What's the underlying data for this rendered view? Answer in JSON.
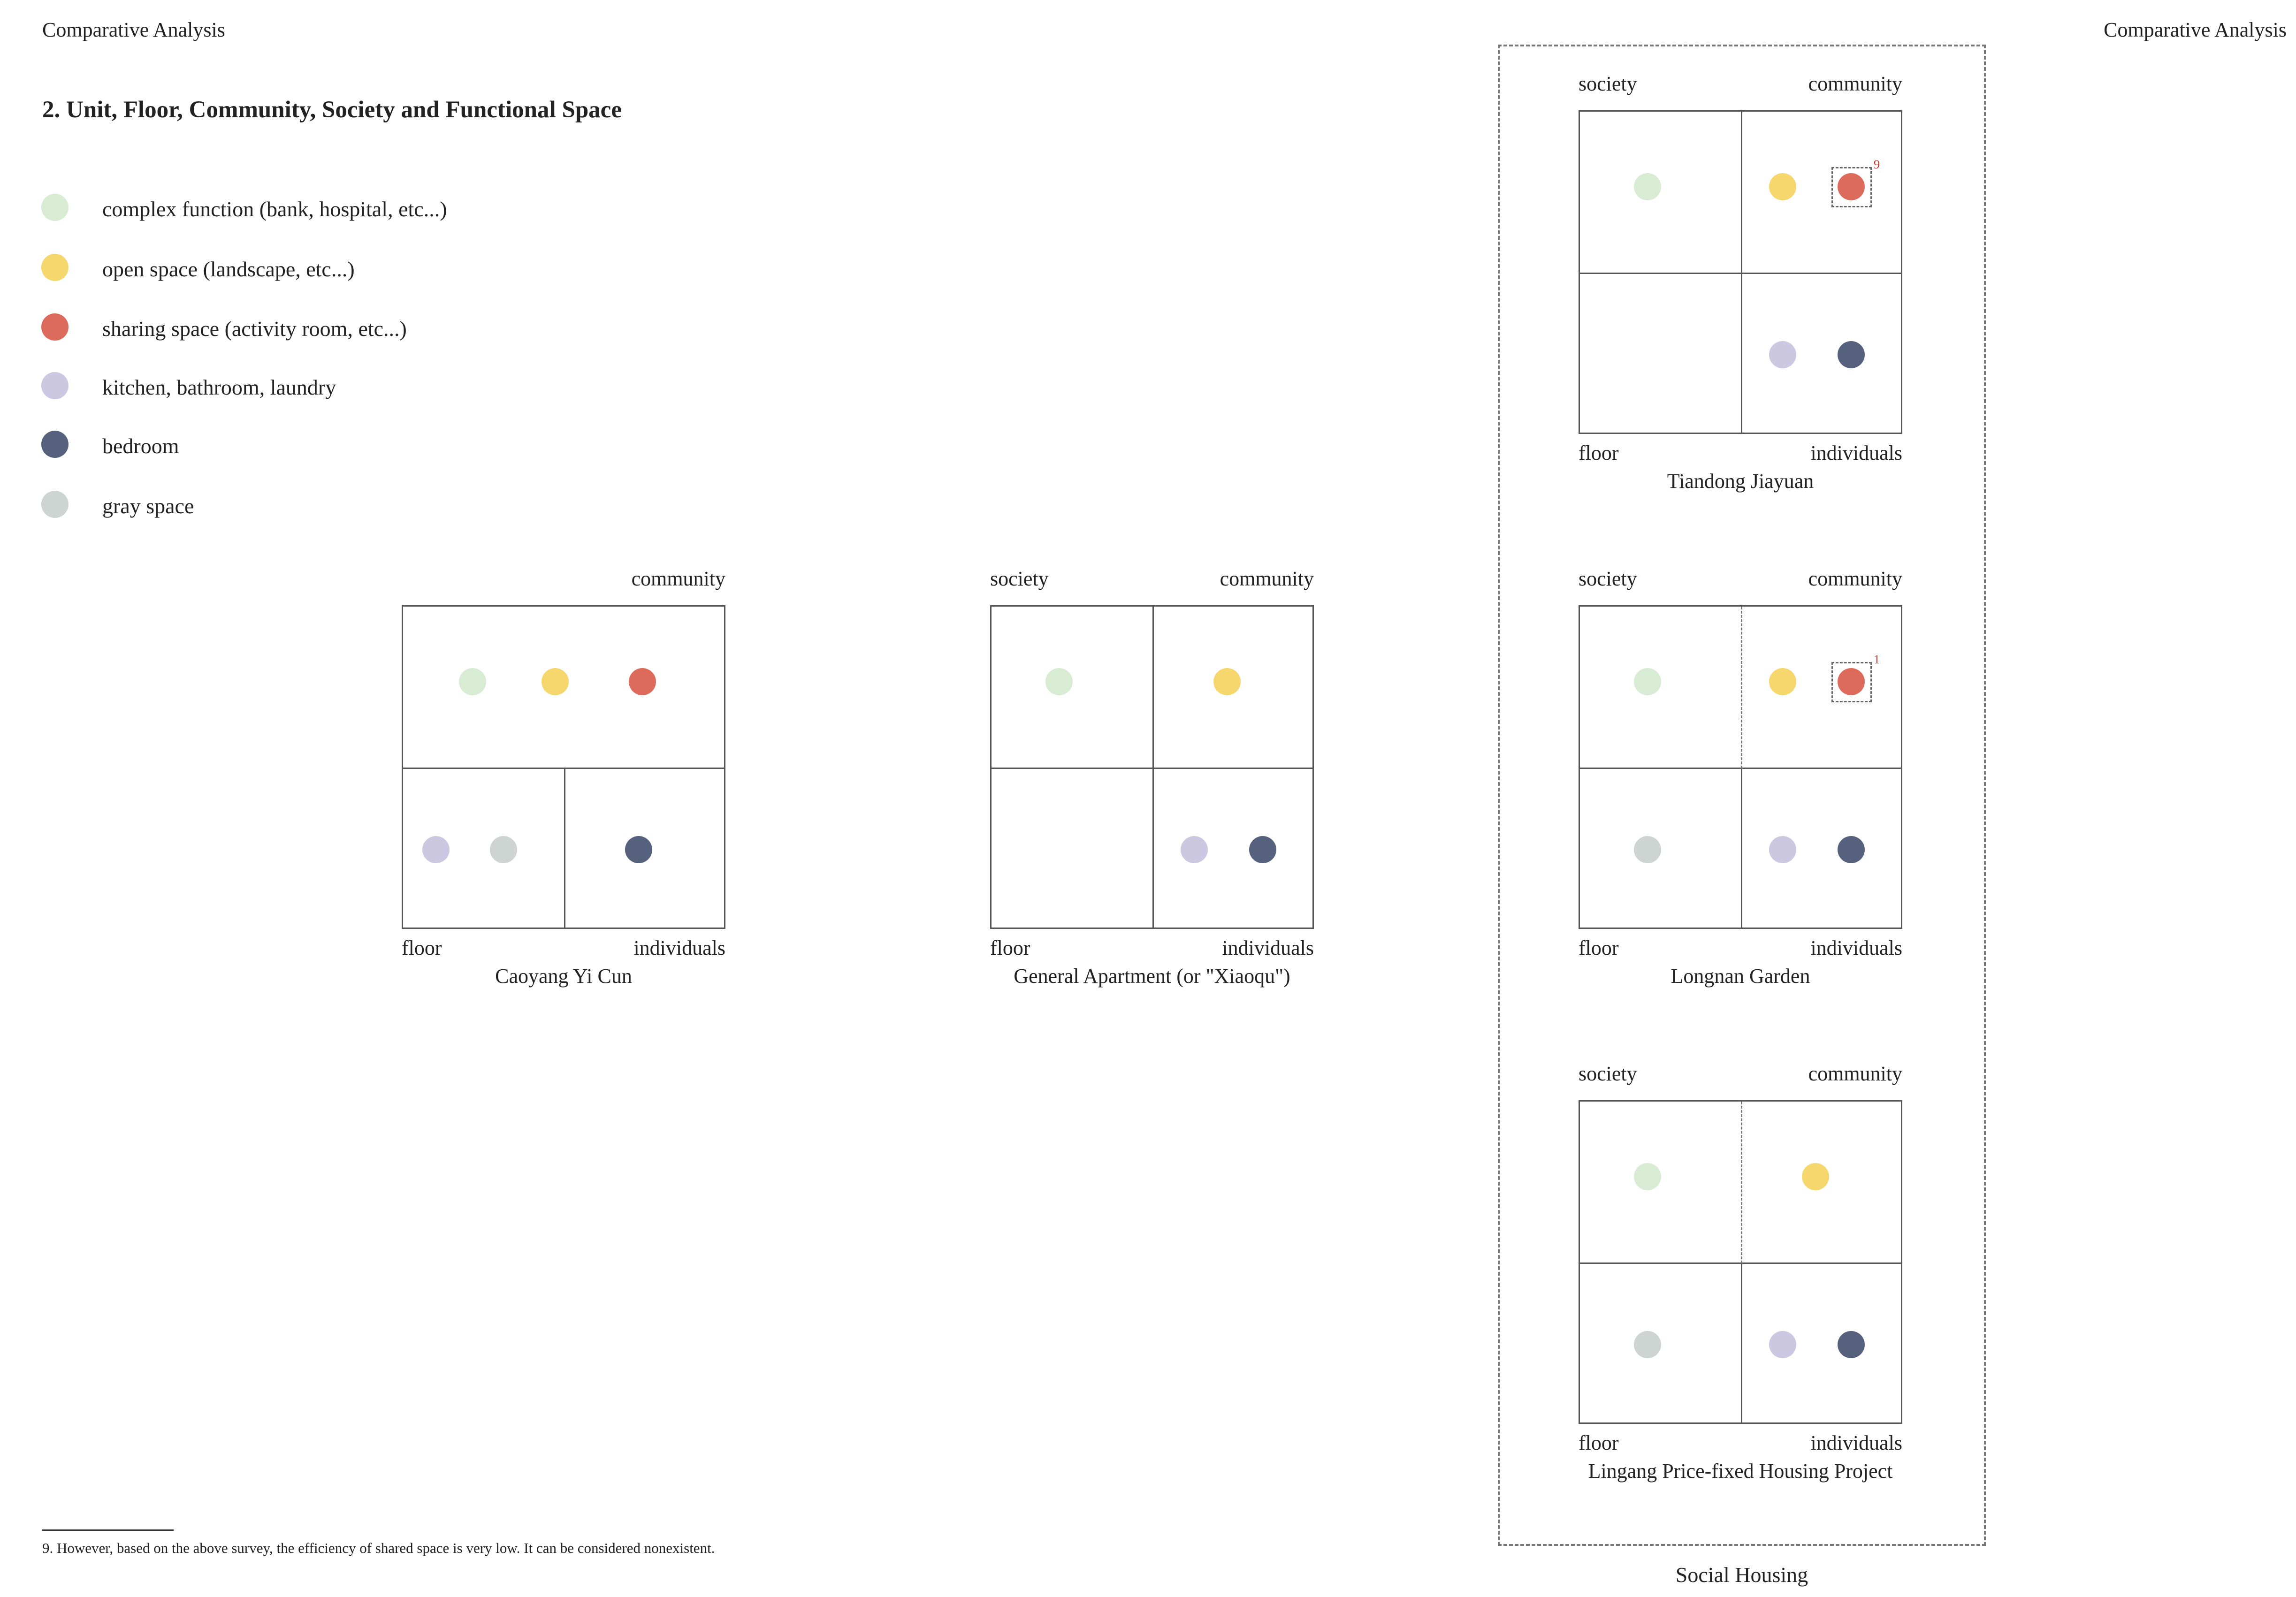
{
  "header": {
    "left": "Comparative Analysis",
    "right": "Comparative Analysis"
  },
  "section_title": "2. Unit, Floor, Community, Society and Functional Space",
  "colors": {
    "complex": "#d8ecd4",
    "open": "#f5d76e",
    "sharing": "#dc6b5c",
    "kitchen": "#ccc8e2",
    "bedroom": "#56617e",
    "gray": "#ced4d2"
  },
  "legend": [
    {
      "key": "complex",
      "label": "complex function (bank, hospital, etc...)"
    },
    {
      "key": "open",
      "label": "open space (landscape, etc...)"
    },
    {
      "key": "sharing",
      "label": "sharing space  (activity room, etc...)"
    },
    {
      "key": "kitchen",
      "label": "kitchen, bathroom, laundry"
    },
    {
      "key": "bedroom",
      "label": "bedroom"
    },
    {
      "key": "gray",
      "label": "gray space"
    }
  ],
  "diagrams": [
    {
      "caption": "Caoyang Yi Cun",
      "labels": {
        "society": "",
        "community": "community",
        "floor": "floor",
        "individuals": "individuals"
      },
      "layout": "top-merged",
      "dots": [
        [
          "complex",
          "top"
        ],
        [
          "open",
          "top"
        ],
        [
          "sharing",
          "top"
        ],
        [
          "kitchen",
          "bl"
        ],
        [
          "gray",
          "bl"
        ],
        [
          "bedroom",
          "br"
        ]
      ]
    },
    {
      "caption": "General Apartment (or \"Xiaoqu\")",
      "labels": {
        "society": "society",
        "community": "community",
        "floor": "floor",
        "individuals": "individuals"
      },
      "layout": "grid",
      "dots": [
        [
          "complex",
          "tl"
        ],
        [
          "open",
          "tr"
        ],
        [
          "kitchen",
          "br"
        ],
        [
          "bedroom",
          "br"
        ]
      ]
    },
    {
      "caption": "Tiandong Jiayuan",
      "labels": {
        "society": "society",
        "community": "community",
        "floor": "floor",
        "individuals": "individuals"
      },
      "layout": "grid",
      "footnote_mark": "9",
      "dots": [
        [
          "complex",
          "tl"
        ],
        [
          "open",
          "tr"
        ],
        [
          "sharing",
          "tr"
        ],
        [
          "kitchen",
          "br"
        ],
        [
          "bedroom",
          "br"
        ]
      ]
    },
    {
      "caption": "Longnan Garden",
      "labels": {
        "society": "society",
        "community": "community",
        "floor": "floor",
        "individuals": "individuals"
      },
      "layout": "grid-dashed-top",
      "footnote_mark": "1",
      "dots": [
        [
          "complex",
          "tl"
        ],
        [
          "open",
          "tr"
        ],
        [
          "sharing",
          "tr"
        ],
        [
          "gray",
          "bl"
        ],
        [
          "kitchen",
          "br"
        ],
        [
          "bedroom",
          "br"
        ]
      ]
    },
    {
      "caption": "Lingang Price-fixed Housing Project",
      "labels": {
        "society": "society",
        "community": "community",
        "floor": "floor",
        "individuals": "individuals"
      },
      "layout": "grid-dashed-top",
      "dots": [
        [
          "complex",
          "tl"
        ],
        [
          "open",
          "tr"
        ],
        [
          "gray",
          "bl"
        ],
        [
          "kitchen",
          "br"
        ],
        [
          "bedroom",
          "br"
        ]
      ]
    }
  ],
  "group_label": "Social Housing",
  "footnote": "9. However, based on the above survey, the efficiency of shared space is very low. It can be considered nonexistent."
}
